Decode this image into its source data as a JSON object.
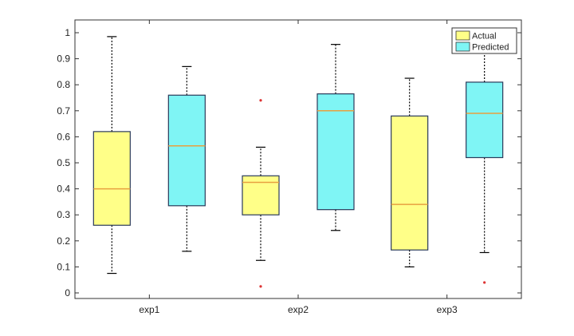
{
  "chart_data": {
    "type": "boxplot",
    "categories": [
      "exp1",
      "exp2",
      "exp3"
    ],
    "ylim": [
      0,
      1
    ],
    "yticks": [
      0,
      0.1,
      0.2,
      0.3,
      0.4,
      0.5,
      0.6,
      0.7,
      0.8,
      0.9,
      1
    ],
    "ytick_labels": [
      "0",
      "0.1",
      "0.2",
      "0.3",
      "0.4",
      "0.5",
      "0.6",
      "0.7",
      "0.8",
      "0.9",
      "1"
    ],
    "grid": false,
    "legend_position": "top-right",
    "series": [
      {
        "name": "Actual",
        "color": "#ffff88",
        "boxes": [
          {
            "category": "exp1",
            "whisker_low": 0.075,
            "q1": 0.26,
            "median": 0.4,
            "q3": 0.62,
            "whisker_high": 0.985,
            "outliers": []
          },
          {
            "category": "exp2",
            "whisker_low": 0.125,
            "q1": 0.3,
            "median": 0.425,
            "q3": 0.45,
            "whisker_high": 0.56,
            "outliers": [
              0.74,
              0.025
            ]
          },
          {
            "category": "exp3",
            "whisker_low": 0.1,
            "q1": 0.165,
            "median": 0.34,
            "q3": 0.68,
            "whisker_high": 0.825,
            "outliers": []
          }
        ]
      },
      {
        "name": "Predicted",
        "color": "#7ff5f5",
        "boxes": [
          {
            "category": "exp1",
            "whisker_low": 0.16,
            "q1": 0.335,
            "median": 0.565,
            "q3": 0.76,
            "whisker_high": 0.87,
            "outliers": []
          },
          {
            "category": "exp2",
            "whisker_low": 0.24,
            "q1": 0.32,
            "median": 0.7,
            "q3": 0.765,
            "whisker_high": 0.955,
            "outliers": []
          },
          {
            "category": "exp3",
            "whisker_low": 0.155,
            "q1": 0.52,
            "median": 0.69,
            "q3": 0.81,
            "whisker_high": 1.0,
            "outliers": [
              0.04
            ]
          }
        ]
      }
    ],
    "median_color": "#e8a040",
    "outlier_color": "#dd3333"
  }
}
